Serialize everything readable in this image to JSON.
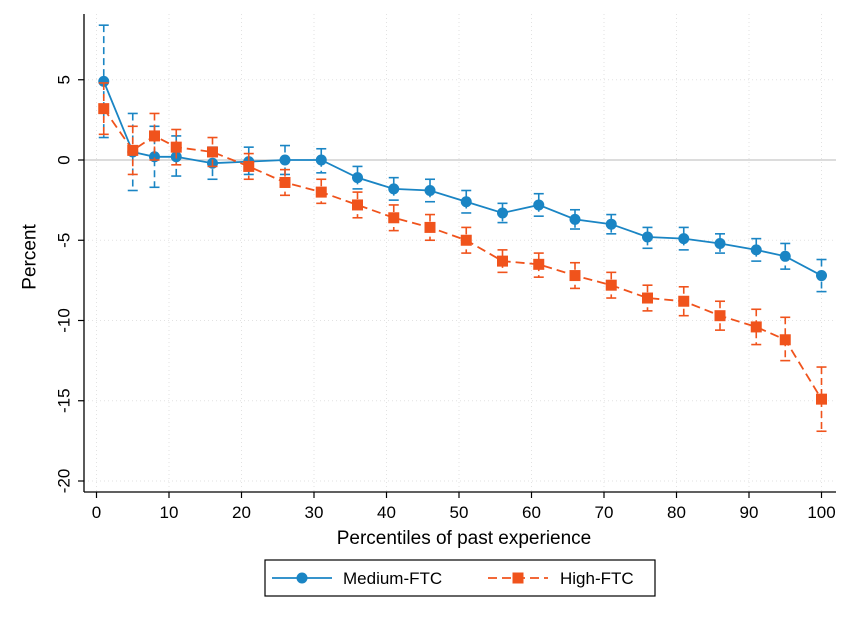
{
  "chart_data": {
    "type": "line",
    "xlabel": "Percentiles of past experience",
    "ylabel": "Percent",
    "xlim": [
      0,
      100
    ],
    "ylim": [
      -20,
      8.5
    ],
    "xticks": [
      0,
      10,
      20,
      30,
      40,
      50,
      60,
      70,
      80,
      90,
      100
    ],
    "yticks": [
      5,
      0,
      -5,
      -10,
      -15,
      -20
    ],
    "grid": true,
    "zero_line": true,
    "legend_position": "bottom",
    "series": [
      {
        "name": "Medium-FTC",
        "color": "#1a85c4",
        "marker": "circle",
        "line_style": "solid",
        "x": [
          1,
          5,
          8,
          11,
          16,
          21,
          26,
          31,
          36,
          41,
          46,
          51,
          56,
          61,
          66,
          71,
          76,
          81,
          86,
          91,
          95,
          100
        ],
        "y": [
          4.9,
          0.5,
          0.2,
          0.2,
          -0.2,
          -0.1,
          0.0,
          0.0,
          -1.1,
          -1.8,
          -1.9,
          -2.6,
          -3.3,
          -2.8,
          -3.7,
          -4.0,
          -4.8,
          -4.9,
          -5.2,
          -5.6,
          -6.0,
          -7.2
        ],
        "lower": [
          1.4,
          -1.9,
          -1.7,
          -1.0,
          -1.2,
          -0.9,
          -0.9,
          -0.8,
          -1.8,
          -2.5,
          -2.6,
          -3.3,
          -3.9,
          -3.5,
          -4.3,
          -4.6,
          -5.5,
          -5.6,
          -5.8,
          -6.3,
          -6.8,
          -8.2
        ],
        "upper": [
          8.4,
          2.9,
          2.1,
          1.5,
          0.8,
          0.8,
          0.9,
          0.7,
          -0.4,
          -1.1,
          -1.2,
          -1.9,
          -2.7,
          -2.1,
          -3.1,
          -3.4,
          -4.2,
          -4.2,
          -4.6,
          -4.9,
          -5.2,
          -6.2
        ]
      },
      {
        "name": "High-FTC",
        "color": "#f0531c",
        "marker": "square",
        "line_style": "dashed",
        "x": [
          1,
          5,
          8,
          11,
          16,
          21,
          26,
          31,
          36,
          41,
          46,
          51,
          56,
          61,
          66,
          71,
          76,
          81,
          86,
          91,
          95,
          100
        ],
        "y": [
          3.2,
          0.6,
          1.5,
          0.8,
          0.5,
          -0.4,
          -1.4,
          -2.0,
          -2.8,
          -3.6,
          -4.2,
          -5.0,
          -6.3,
          -6.5,
          -7.2,
          -7.8,
          -8.6,
          -8.8,
          -9.7,
          -10.4,
          -11.2,
          -14.9
        ],
        "lower": [
          1.6,
          -0.9,
          0.0,
          -0.3,
          -0.4,
          -1.2,
          -2.2,
          -2.7,
          -3.6,
          -4.4,
          -5.0,
          -5.8,
          -7.0,
          -7.3,
          -8.0,
          -8.6,
          -9.4,
          -9.7,
          -10.6,
          -11.5,
          -12.5,
          -16.9
        ],
        "upper": [
          4.8,
          2.1,
          2.9,
          1.9,
          1.4,
          0.4,
          -0.6,
          -1.2,
          -2.0,
          -2.8,
          -3.4,
          -4.2,
          -5.6,
          -5.8,
          -6.4,
          -7.0,
          -7.8,
          -7.9,
          -8.8,
          -9.3,
          -9.8,
          -12.9
        ]
      }
    ]
  }
}
